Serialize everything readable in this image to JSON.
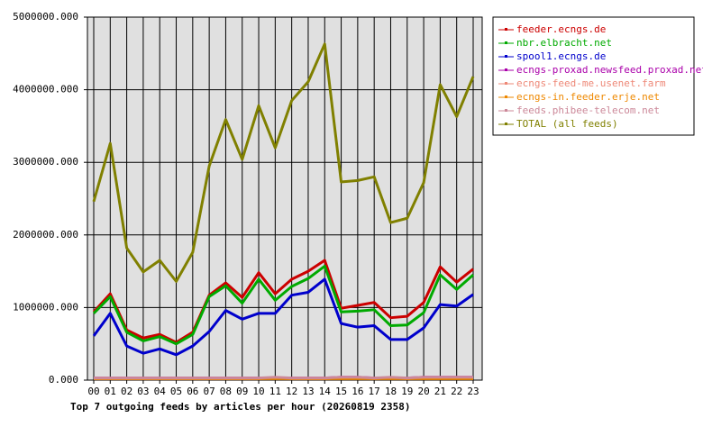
{
  "chart_data": {
    "type": "line",
    "title": "Top 7 outgoing feeds by articles per hour (20260819 2358)",
    "categories": [
      "00",
      "01",
      "02",
      "03",
      "04",
      "05",
      "06",
      "07",
      "08",
      "09",
      "10",
      "11",
      "12",
      "13",
      "14",
      "15",
      "16",
      "17",
      "18",
      "19",
      "20",
      "21",
      "22",
      "23"
    ],
    "ylim": [
      0,
      5000000
    ],
    "yticks": [
      {
        "value": 0,
        "label": "0.000"
      },
      {
        "value": 1000000,
        "label": "1000000.000"
      },
      {
        "value": 2000000,
        "label": "2000000.000"
      },
      {
        "value": 3000000,
        "label": "3000000.000"
      },
      {
        "value": 4000000,
        "label": "4000000.000"
      },
      {
        "value": 5000000,
        "label": "5000000.000"
      }
    ],
    "grid": true,
    "legend": "right",
    "series": [
      {
        "name": "feeder.ecngs.de",
        "color": "#cc0000",
        "values": [
          940000,
          1190000,
          690000,
          580000,
          630000,
          520000,
          660000,
          1170000,
          1340000,
          1140000,
          1480000,
          1190000,
          1390000,
          1500000,
          1650000,
          990000,
          1030000,
          1070000,
          860000,
          880000,
          1070000,
          1560000,
          1350000,
          1530000
        ]
      },
      {
        "name": "nbr.elbracht.net",
        "color": "#00aa00",
        "values": [
          920000,
          1150000,
          660000,
          540000,
          600000,
          500000,
          630000,
          1150000,
          1300000,
          1060000,
          1390000,
          1100000,
          1290000,
          1400000,
          1570000,
          940000,
          950000,
          970000,
          750000,
          760000,
          930000,
          1450000,
          1250000,
          1450000
        ]
      },
      {
        "name": "spool1.ecngs.de",
        "color": "#0000cc",
        "values": [
          610000,
          920000,
          470000,
          370000,
          430000,
          350000,
          470000,
          670000,
          960000,
          840000,
          920000,
          920000,
          1170000,
          1210000,
          1390000,
          780000,
          730000,
          750000,
          560000,
          560000,
          720000,
          1040000,
          1020000,
          1180000
        ]
      },
      {
        "name": "ecngs-proxad.newsfeed.proxad.net",
        "color": "#aa00aa",
        "values": [
          30000,
          30000,
          30000,
          30000,
          30000,
          30000,
          30000,
          30000,
          30000,
          30000,
          30000,
          30000,
          30000,
          30000,
          30000,
          40000,
          40000,
          30000,
          30000,
          30000,
          40000,
          40000,
          40000,
          40000
        ]
      },
      {
        "name": "ecngs-feed-me.usenet.farm",
        "color": "#ee8877",
        "values": [
          20000,
          20000,
          20000,
          20000,
          20000,
          20000,
          20000,
          20000,
          20000,
          20000,
          20000,
          30000,
          20000,
          20000,
          20000,
          30000,
          30000,
          20000,
          30000,
          20000,
          30000,
          30000,
          30000,
          30000
        ]
      },
      {
        "name": "ecngs-in.feeder.erje.net",
        "color": "#ee8800",
        "values": [
          20000,
          20000,
          20000,
          20000,
          20000,
          20000,
          20000,
          20000,
          20000,
          20000,
          20000,
          20000,
          20000,
          20000,
          20000,
          20000,
          20000,
          20000,
          20000,
          20000,
          20000,
          20000,
          20000,
          20000
        ]
      },
      {
        "name": "feeds.phibee-telecom.net",
        "color": "#cc8899",
        "values": [
          30000,
          30000,
          30000,
          30000,
          30000,
          30000,
          30000,
          30000,
          30000,
          30000,
          30000,
          40000,
          30000,
          30000,
          30000,
          40000,
          40000,
          30000,
          40000,
          30000,
          40000,
          40000,
          40000,
          40000
        ]
      },
      {
        "name": "TOTAL (all feeds)",
        "color": "#808000",
        "values": [
          2460000,
          3260000,
          1820000,
          1490000,
          1650000,
          1360000,
          1760000,
          2950000,
          3590000,
          3040000,
          3780000,
          3200000,
          3850000,
          4110000,
          4630000,
          2730000,
          2750000,
          2800000,
          2170000,
          2230000,
          2720000,
          4070000,
          3630000,
          4180000
        ]
      }
    ]
  }
}
